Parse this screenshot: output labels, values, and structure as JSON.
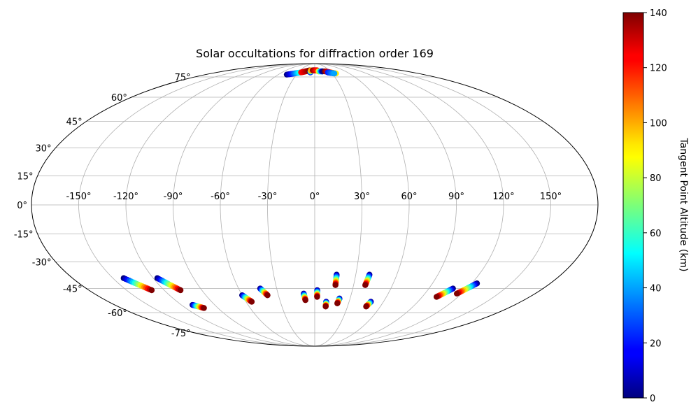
{
  "chart_data": {
    "type": "scatter",
    "projection": "mollweide",
    "title": "Solar occultations for diffraction order 169",
    "longitude_ticks": [
      "-150°",
      "-120°",
      "-90°",
      "-60°",
      "-30°",
      "0°",
      "30°",
      "60°",
      "90°",
      "120°",
      "150°"
    ],
    "latitude_ticks": [
      "-75°",
      "-60°",
      "-45°",
      "-30°",
      "-15°",
      "0°",
      "15°",
      "30°",
      "45°",
      "60°",
      "75°"
    ],
    "grid": true,
    "colorbar": {
      "label": "Tangent Point Altitude (km)",
      "colormap": "jet",
      "range": [
        0,
        140
      ],
      "ticks": [
        "0",
        "20",
        "40",
        "60",
        "80",
        "100",
        "120",
        "140"
      ]
    },
    "tracks": [
      {
        "start": [
          -142,
          -39
        ],
        "end": [
          -130,
          -46
        ],
        "alt_start": 0,
        "alt_end": 140
      },
      {
        "start": [
          -117,
          -39
        ],
        "end": [
          -107,
          -46
        ],
        "alt_start": 0,
        "alt_end": 140
      },
      {
        "start": [
          -110,
          -55
        ],
        "end": [
          -103,
          -57
        ],
        "alt_start": 0,
        "alt_end": 140
      },
      {
        "start": [
          -60,
          -49
        ],
        "end": [
          -55,
          -53
        ],
        "alt_start": 0,
        "alt_end": 140
      },
      {
        "start": [
          -43,
          -45
        ],
        "end": [
          -39,
          -49
        ],
        "alt_start": 0,
        "alt_end": 140
      },
      {
        "start": [
          -9,
          -48
        ],
        "end": [
          -8,
          -52
        ],
        "alt_start": 0,
        "alt_end": 140
      },
      {
        "start": [
          2,
          -46
        ],
        "end": [
          2,
          -50
        ],
        "alt_start": 0,
        "alt_end": 140
      },
      {
        "start": [
          10,
          -53
        ],
        "end": [
          10,
          -56
        ],
        "alt_start": 0,
        "alt_end": 140
      },
      {
        "start": [
          16,
          -37
        ],
        "end": [
          16,
          -43
        ],
        "alt_start": 0,
        "alt_end": 140
      },
      {
        "start": [
          21,
          -51
        ],
        "end": [
          20,
          -54
        ],
        "alt_start": 0,
        "alt_end": 140
      },
      {
        "start": [
          40,
          -37
        ],
        "end": [
          39,
          -43
        ],
        "alt_start": 0,
        "alt_end": 140
      },
      {
        "start": [
          49,
          -53
        ],
        "end": [
          47,
          -56
        ],
        "alt_start": 0,
        "alt_end": 140
      },
      {
        "start": [
          109,
          -45
        ],
        "end": [
          102,
          -50
        ],
        "alt_start": 0,
        "alt_end": 140
      },
      {
        "start": [
          124,
          -42
        ],
        "end": [
          116,
          -48
        ],
        "alt_start": 0,
        "alt_end": 140
      },
      {
        "start": [
          -46,
          77
        ],
        "end": [
          -25,
          79
        ],
        "alt_start": 0,
        "alt_end": 60
      },
      {
        "start": [
          -25,
          79
        ],
        "end": [
          -10,
          81
        ],
        "alt_start": 120,
        "alt_end": 140
      },
      {
        "start": [
          -8,
          79
        ],
        "end": [
          -8,
          81
        ],
        "alt_start": 0,
        "alt_end": 100
      },
      {
        "start": [
          -4,
          81
        ],
        "end": [
          5,
          81
        ],
        "alt_start": 140,
        "alt_end": 120
      },
      {
        "start": [
          7,
          80
        ],
        "end": [
          16,
          80
        ],
        "alt_start": 100,
        "alt_end": 0
      },
      {
        "start": [
          20,
          80
        ],
        "end": [
          37,
          78
        ],
        "alt_start": 140,
        "alt_end": 90
      },
      {
        "start": [
          24,
          79
        ],
        "end": [
          34,
          78
        ],
        "alt_start": 20,
        "alt_end": 40
      }
    ]
  }
}
